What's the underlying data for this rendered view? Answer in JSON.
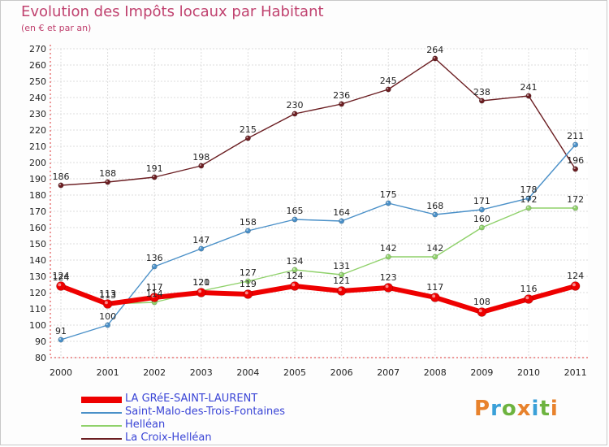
{
  "title": "Evolution des Impôts locaux par Habitant",
  "subtitle": "(en € et par an)",
  "logo": {
    "text": "Proxiti",
    "colors": [
      "#e8822c",
      "#3aa0d8",
      "#6db33f",
      "#e8822c",
      "#3aa0d8",
      "#6db33f",
      "#e8822c"
    ]
  },
  "chart_data": {
    "type": "line",
    "title": "Evolution des Impôts locaux par Habitant",
    "subtitle": "(en € et par an)",
    "xlabel": "",
    "ylabel": "",
    "x": [
      "2000",
      "2001",
      "2002",
      "2003",
      "2004",
      "2005",
      "2006",
      "2007",
      "2008",
      "2009",
      "2010",
      "2011"
    ],
    "ylim": [
      80,
      270
    ],
    "yticks": [
      80,
      90,
      100,
      110,
      120,
      130,
      140,
      150,
      160,
      170,
      180,
      190,
      200,
      210,
      220,
      230,
      240,
      250,
      260,
      270
    ],
    "grid": true,
    "legend_position": "bottom",
    "series": [
      {
        "name": "La Croix-Helléan",
        "color": "#6b1e22",
        "values": [
          186,
          188,
          191,
          198,
          215,
          230,
          236,
          245,
          264,
          238,
          241,
          196
        ]
      },
      {
        "name": "Saint-Malo-des-Trois-Fontaines",
        "color": "#4a90c8",
        "values": [
          91,
          100,
          136,
          147,
          158,
          165,
          164,
          175,
          168,
          171,
          178,
          211
        ]
      },
      {
        "name": "Helléan",
        "color": "#8fd16a",
        "values": [
          124,
          113,
          114,
          121,
          127,
          134,
          131,
          142,
          142,
          160,
          172,
          172
        ]
      },
      {
        "name": "LA GRéE-SAINT-LAURENT",
        "color": "#ee0000",
        "values": [
          124,
          113,
          117,
          120,
          119,
          124,
          121,
          123,
          117,
          108,
          116,
          124
        ]
      }
    ],
    "legend": [
      "LA GRéE-SAINT-LAURENT",
      "Saint-Malo-des-Trois-Fontaines",
      "Helléan",
      "La Croix-Helléan"
    ]
  }
}
